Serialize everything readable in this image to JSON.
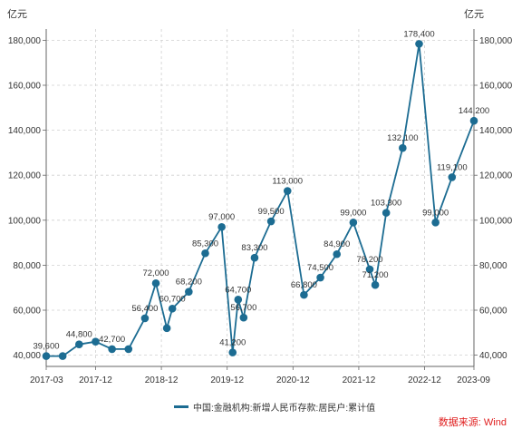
{
  "chart_data": {
    "type": "line",
    "y_unit_left": "亿元",
    "y_unit_right": "亿元",
    "ylim": [
      35000,
      185000
    ],
    "y_ticks": [
      40000,
      60000,
      80000,
      100000,
      120000,
      140000,
      160000,
      180000
    ],
    "y_tick_labels": [
      "40,000",
      "60,000",
      "80,000",
      "100,000",
      "120,000",
      "140,000",
      "160,000",
      "180,000"
    ],
    "x_tick_labels": [
      "2017-03",
      "2017-12",
      "2018-12",
      "2019-12",
      "2020-12",
      "2021-12",
      "2022-12",
      "2023-09"
    ],
    "x_tick_dates": [
      "2017-03",
      "2017-12",
      "2018-12",
      "2019-12",
      "2020-12",
      "2021-12",
      "2022-12",
      "2023-09"
    ],
    "grid": true,
    "legend_position": "bottom",
    "colors": {
      "line": "#1c6c92",
      "marker": "#1c6c92",
      "grid": "#d0d0d0",
      "axis": "#666666"
    },
    "series": [
      {
        "name": "中国:金融机构:新增人民币存款:居民户:累计值",
        "points": [
          {
            "x": "2017-03",
            "y": 39600,
            "label": "39,600"
          },
          {
            "x": "2017-06",
            "y": 39600
          },
          {
            "x": "2017-09",
            "y": 44800,
            "label": "44,800"
          },
          {
            "x": "2017-12",
            "y": 46000
          },
          {
            "x": "2018-03",
            "y": 42700,
            "label": "42,700"
          },
          {
            "x": "2018-06",
            "y": 42700
          },
          {
            "x": "2018-09",
            "y": 56400,
            "label": "56,400"
          },
          {
            "x": "2018-11",
            "y": 72000,
            "label": "72,000"
          },
          {
            "x": "2019-01",
            "y": 52000
          },
          {
            "x": "2019-02",
            "y": 60700,
            "label": "60,700"
          },
          {
            "x": "2019-05",
            "y": 68200,
            "label": "68,200"
          },
          {
            "x": "2019-08",
            "y": 85300,
            "label": "85,300"
          },
          {
            "x": "2019-11",
            "y": 97000,
            "label": "97,000"
          },
          {
            "x": "2020-01",
            "y": 41200,
            "label": "41,200"
          },
          {
            "x": "2020-02",
            "y": 64700,
            "label": "64,700"
          },
          {
            "x": "2020-03",
            "y": 56700,
            "label": "56,700"
          },
          {
            "x": "2020-05",
            "y": 83300,
            "label": "83,300"
          },
          {
            "x": "2020-08",
            "y": 99500,
            "label": "99,500"
          },
          {
            "x": "2020-11",
            "y": 113000,
            "label": "113,000"
          },
          {
            "x": "2021-02",
            "y": 66800,
            "label": "66,800"
          },
          {
            "x": "2021-05",
            "y": 74500,
            "label": "74,500"
          },
          {
            "x": "2021-08",
            "y": 84900,
            "label": "84,900"
          },
          {
            "x": "2021-11",
            "y": 99000,
            "label": "99,000"
          },
          {
            "x": "2022-02",
            "y": 78200,
            "label": "78,200"
          },
          {
            "x": "2022-03",
            "y": 71200,
            "label": "71,200"
          },
          {
            "x": "2022-05",
            "y": 103300,
            "label": "103,300"
          },
          {
            "x": "2022-08",
            "y": 132100,
            "label": "132,100"
          },
          {
            "x": "2022-11",
            "y": 178400,
            "label": "178,400"
          },
          {
            "x": "2023-02",
            "y": 99000,
            "label": "99,000"
          },
          {
            "x": "2023-05",
            "y": 119100,
            "label": "119,100"
          },
          {
            "x": "2023-09",
            "y": 144200,
            "label": "144,200"
          }
        ]
      }
    ]
  },
  "legend": {
    "label": "中国:金融机构:新增人民币存款:居民户:累计值"
  },
  "source": "数据来源: Wind"
}
